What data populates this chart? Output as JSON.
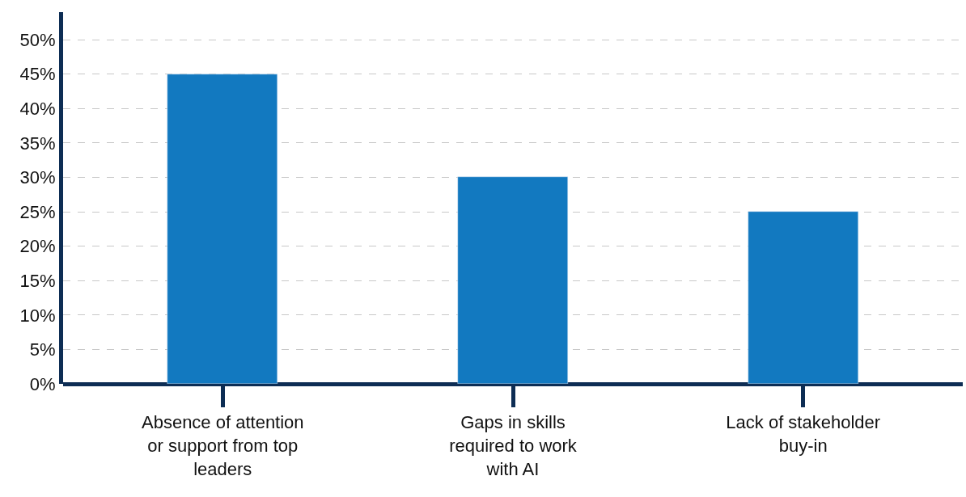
{
  "chart_data": {
    "type": "bar",
    "categories": [
      "Absence of attention or support from top leaders",
      "Gaps in skills required to work with AI",
      "Lack of stakeholder buy-in"
    ],
    "values": [
      45,
      30,
      25
    ],
    "color": "#1279c0",
    "ylim": [
      0,
      54
    ],
    "yticks": [
      {
        "value": 0,
        "label": "0%"
      },
      {
        "value": 5,
        "label": "5%"
      },
      {
        "value": 10,
        "label": "10%"
      },
      {
        "value": 15,
        "label": "15%"
      },
      {
        "value": 20,
        "label": "20%"
      },
      {
        "value": 25,
        "label": "25%"
      },
      {
        "value": 30,
        "label": "30%"
      },
      {
        "value": 35,
        "label": "35%"
      },
      {
        "value": 40,
        "label": "40%"
      },
      {
        "value": 45,
        "label": "45%"
      },
      {
        "value": 50,
        "label": "50%"
      }
    ],
    "grid": "y"
  }
}
